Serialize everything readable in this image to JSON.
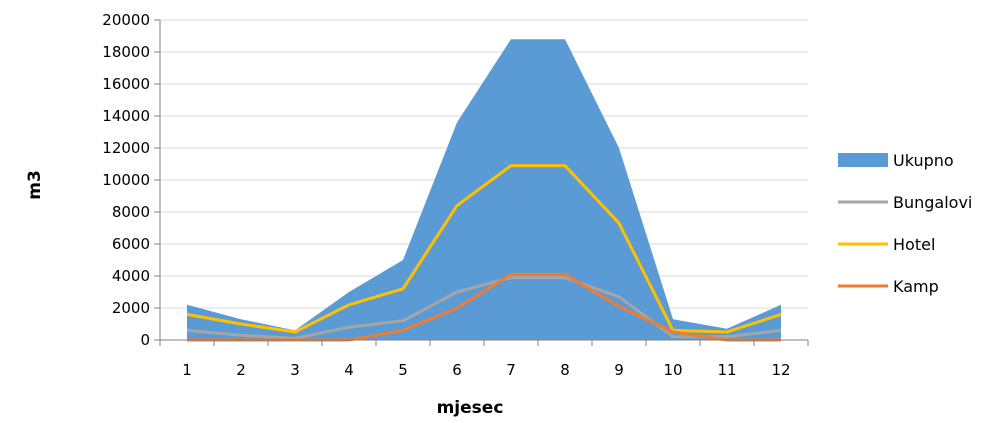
{
  "chart_data": {
    "type": "area",
    "title": "",
    "xlabel": "mjesec",
    "ylabel": "m3",
    "categories": [
      "1",
      "2",
      "3",
      "4",
      "5",
      "6",
      "7",
      "8",
      "9",
      "10",
      "11",
      "12"
    ],
    "ylim": [
      0,
      20000
    ],
    "yticks": [
      "0",
      "2000",
      "4000",
      "6000",
      "8000",
      "10000",
      "12000",
      "14000",
      "16000",
      "18000",
      "20000"
    ],
    "grid": true,
    "legend_position": "right",
    "series": [
      {
        "name": "Ukupno",
        "kind": "area",
        "color": "#5B9BD5",
        "values": [
          2200,
          1300,
          600,
          3000,
          5000,
          13600,
          18800,
          18800,
          12000,
          1300,
          700,
          2200
        ]
      },
      {
        "name": "Bungalovi",
        "kind": "line",
        "color": "#A5A5A5",
        "values": [
          600,
          300,
          100,
          800,
          1200,
          3000,
          3900,
          3900,
          2700,
          200,
          200,
          600
        ]
      },
      {
        "name": "Hotel",
        "kind": "line",
        "color": "#FFC000",
        "values": [
          1600,
          1000,
          500,
          2200,
          3200,
          8400,
          10900,
          10900,
          7300,
          600,
          500,
          1600
        ]
      },
      {
        "name": "Kamp",
        "kind": "line",
        "color": "#ED7D31",
        "values": [
          0,
          0,
          0,
          0,
          600,
          2000,
          4100,
          4100,
          2100,
          500,
          0,
          0
        ]
      }
    ]
  }
}
